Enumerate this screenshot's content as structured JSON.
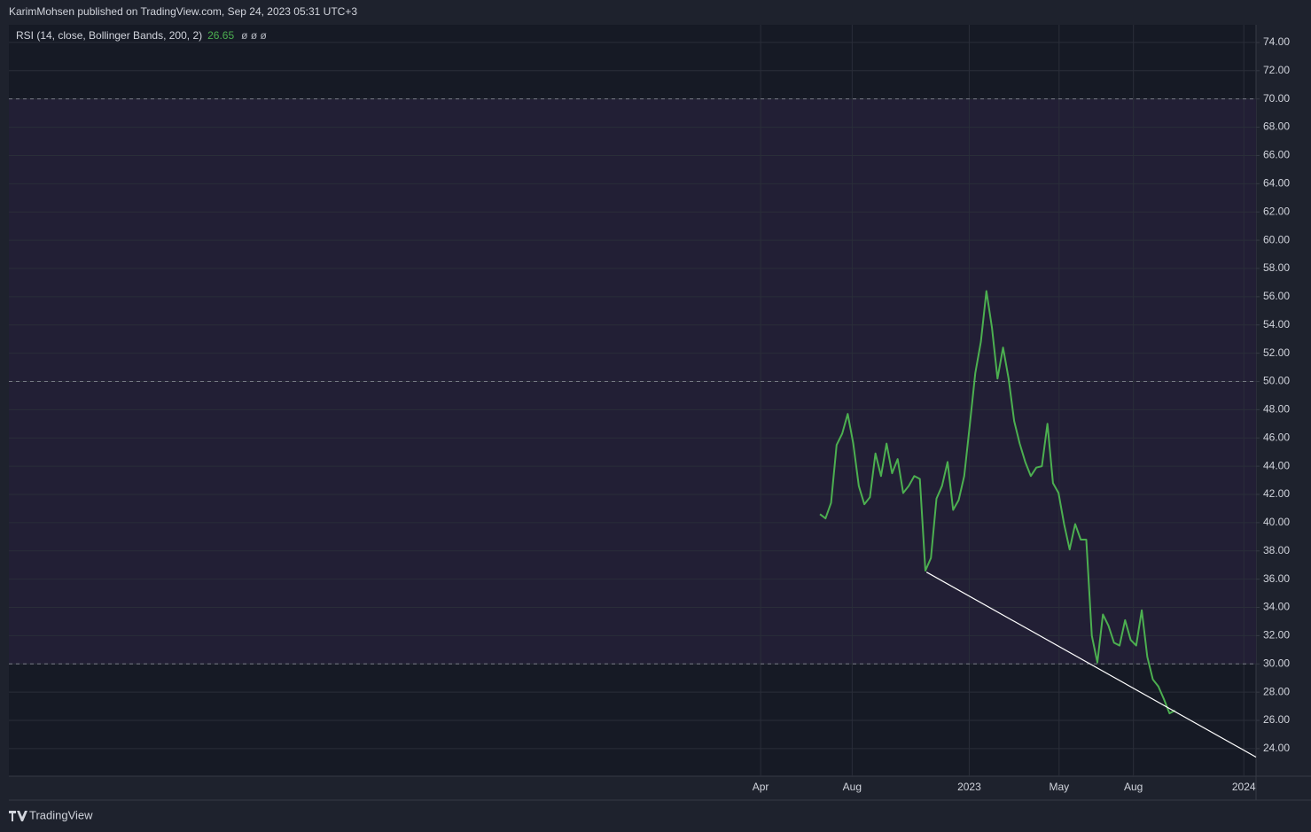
{
  "header": {
    "published": "KarimMohsen published on TradingView.com, Sep 24, 2023 05:31 UTC+3"
  },
  "footer": {
    "brand": "TradingView"
  },
  "chart_data": {
    "type": "line",
    "indicator": "RSI (14, close, Bollinger Bands, 200, 2)",
    "last_value": 26.65,
    "placeholders": "ø ø ø",
    "series": [
      {
        "color": "#4caf50",
        "values": [
          40.6,
          40.3,
          41.4,
          45.5,
          46.3,
          47.7,
          45.6,
          42.6,
          41.3,
          41.8,
          44.9,
          43.3,
          45.6,
          43.5,
          44.5,
          42.1,
          42.6,
          43.3,
          43.1,
          36.6,
          37.5,
          41.7,
          42.6,
          44.3,
          40.9,
          41.6,
          43.3,
          46.9,
          50.6,
          52.8,
          56.4,
          53.8,
          50.2,
          52.4,
          50.2,
          47.2,
          45.6,
          44.3,
          43.3,
          43.9,
          44.0,
          47.0,
          42.8,
          42.1,
          39.9,
          38.1,
          39.9,
          38.8,
          38.8,
          32.0,
          30.1,
          33.5,
          32.7,
          31.5,
          31.3,
          33.1,
          31.7,
          31.3,
          33.8,
          30.5,
          28.9,
          28.4,
          27.5,
          26.5,
          26.7
        ]
      }
    ],
    "xlim": [
      -146.2,
      78.6
    ],
    "xticks": [
      {
        "value": -10.7,
        "label": "Apr"
      },
      {
        "value": 5.8,
        "label": "Aug"
      },
      {
        "value": 26.9,
        "label": "2023"
      },
      {
        "value": 43.1,
        "label": "May"
      },
      {
        "value": 56.5,
        "label": "Aug"
      },
      {
        "value": 76.4,
        "label": "2024"
      }
    ],
    "ylim": [
      22.05,
      75.25
    ],
    "yticks": [
      {
        "value": 24,
        "label": "24.00"
      },
      {
        "value": 26,
        "label": "26.00"
      },
      {
        "value": 28,
        "label": "28.00"
      },
      {
        "value": 30,
        "label": "30.00"
      },
      {
        "value": 32,
        "label": "32.00"
      },
      {
        "value": 34,
        "label": "34.00"
      },
      {
        "value": 36,
        "label": "36.00"
      },
      {
        "value": 38,
        "label": "38.00"
      },
      {
        "value": 40,
        "label": "40.00"
      },
      {
        "value": 42,
        "label": "42.00"
      },
      {
        "value": 44,
        "label": "44.00"
      },
      {
        "value": 46,
        "label": "46.00"
      },
      {
        "value": 48,
        "label": "48.00"
      },
      {
        "value": 50,
        "label": "50.00"
      },
      {
        "value": 52,
        "label": "52.00"
      },
      {
        "value": 54,
        "label": "54.00"
      },
      {
        "value": 56,
        "label": "56.00"
      },
      {
        "value": 58,
        "label": "58.00"
      },
      {
        "value": 60,
        "label": "60.00"
      },
      {
        "value": 62,
        "label": "62.00"
      },
      {
        "value": 64,
        "label": "64.00"
      },
      {
        "value": 66,
        "label": "66.00"
      },
      {
        "value": 68,
        "label": "68.00"
      },
      {
        "value": 70,
        "label": "70.00"
      },
      {
        "value": 72,
        "label": "72.00"
      },
      {
        "value": 74,
        "label": "74.00"
      }
    ],
    "bands": {
      "upper": 70,
      "middle": 50,
      "lower": 30,
      "fill": "#221f35"
    },
    "trendline": {
      "x": [
        19.2,
        78.6
      ],
      "y": [
        36.5,
        23.4
      ],
      "color": "#ffffff"
    },
    "grid": true
  }
}
